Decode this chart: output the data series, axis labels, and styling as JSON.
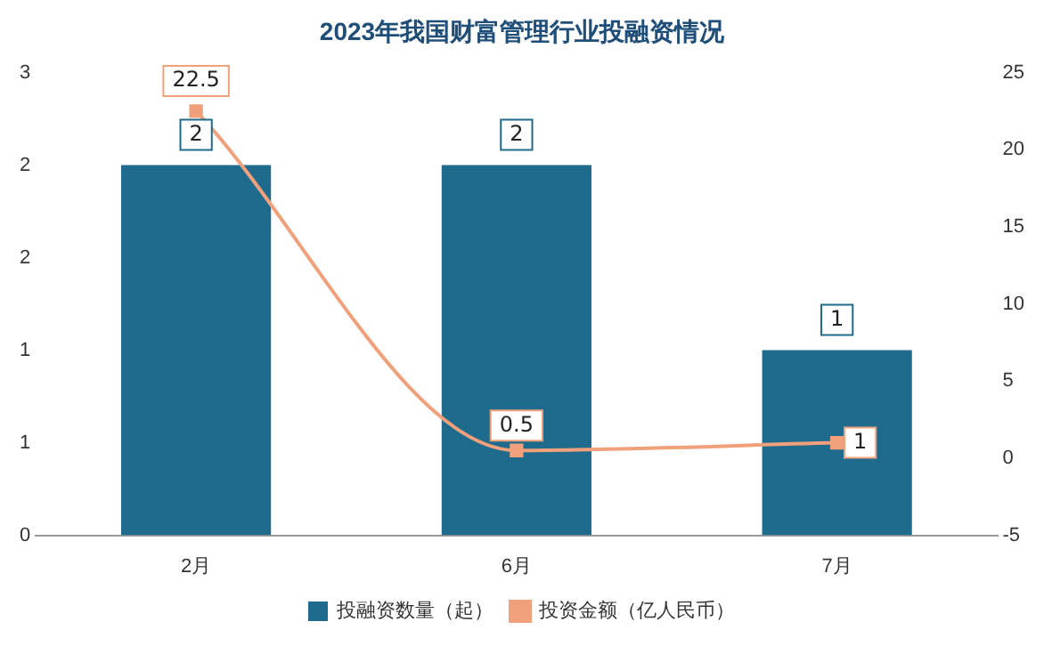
{
  "chart_data": {
    "type": "bar",
    "title": "2023年我国财富管理行业投融资情况",
    "categories": [
      "2月",
      "6月",
      "7月"
    ],
    "series": [
      {
        "name": "投融资数量（起）",
        "color": "#1f6b8e",
        "values": [
          2,
          2,
          1
        ]
      },
      {
        "name": "投资金额（亿人民币）",
        "type": "line",
        "axis": "y2",
        "color": "#f0a07a",
        "values": [
          22.5,
          0.5,
          1
        ]
      }
    ],
    "ylim": [
      0,
      2.5
    ],
    "yticks": [
      0,
      {
        "value": 0.5,
        "label": "1"
      },
      1,
      {
        "value": 1.5,
        "label": "2"
      },
      2,
      {
        "value": 2.5,
        "label": "3"
      }
    ],
    "y2lim": [
      -5,
      25
    ],
    "y2ticks": [
      -5,
      0,
      5,
      10,
      15,
      20,
      25
    ],
    "data_labels": true,
    "marker": "square",
    "legend": "bottom",
    "grid": false
  }
}
